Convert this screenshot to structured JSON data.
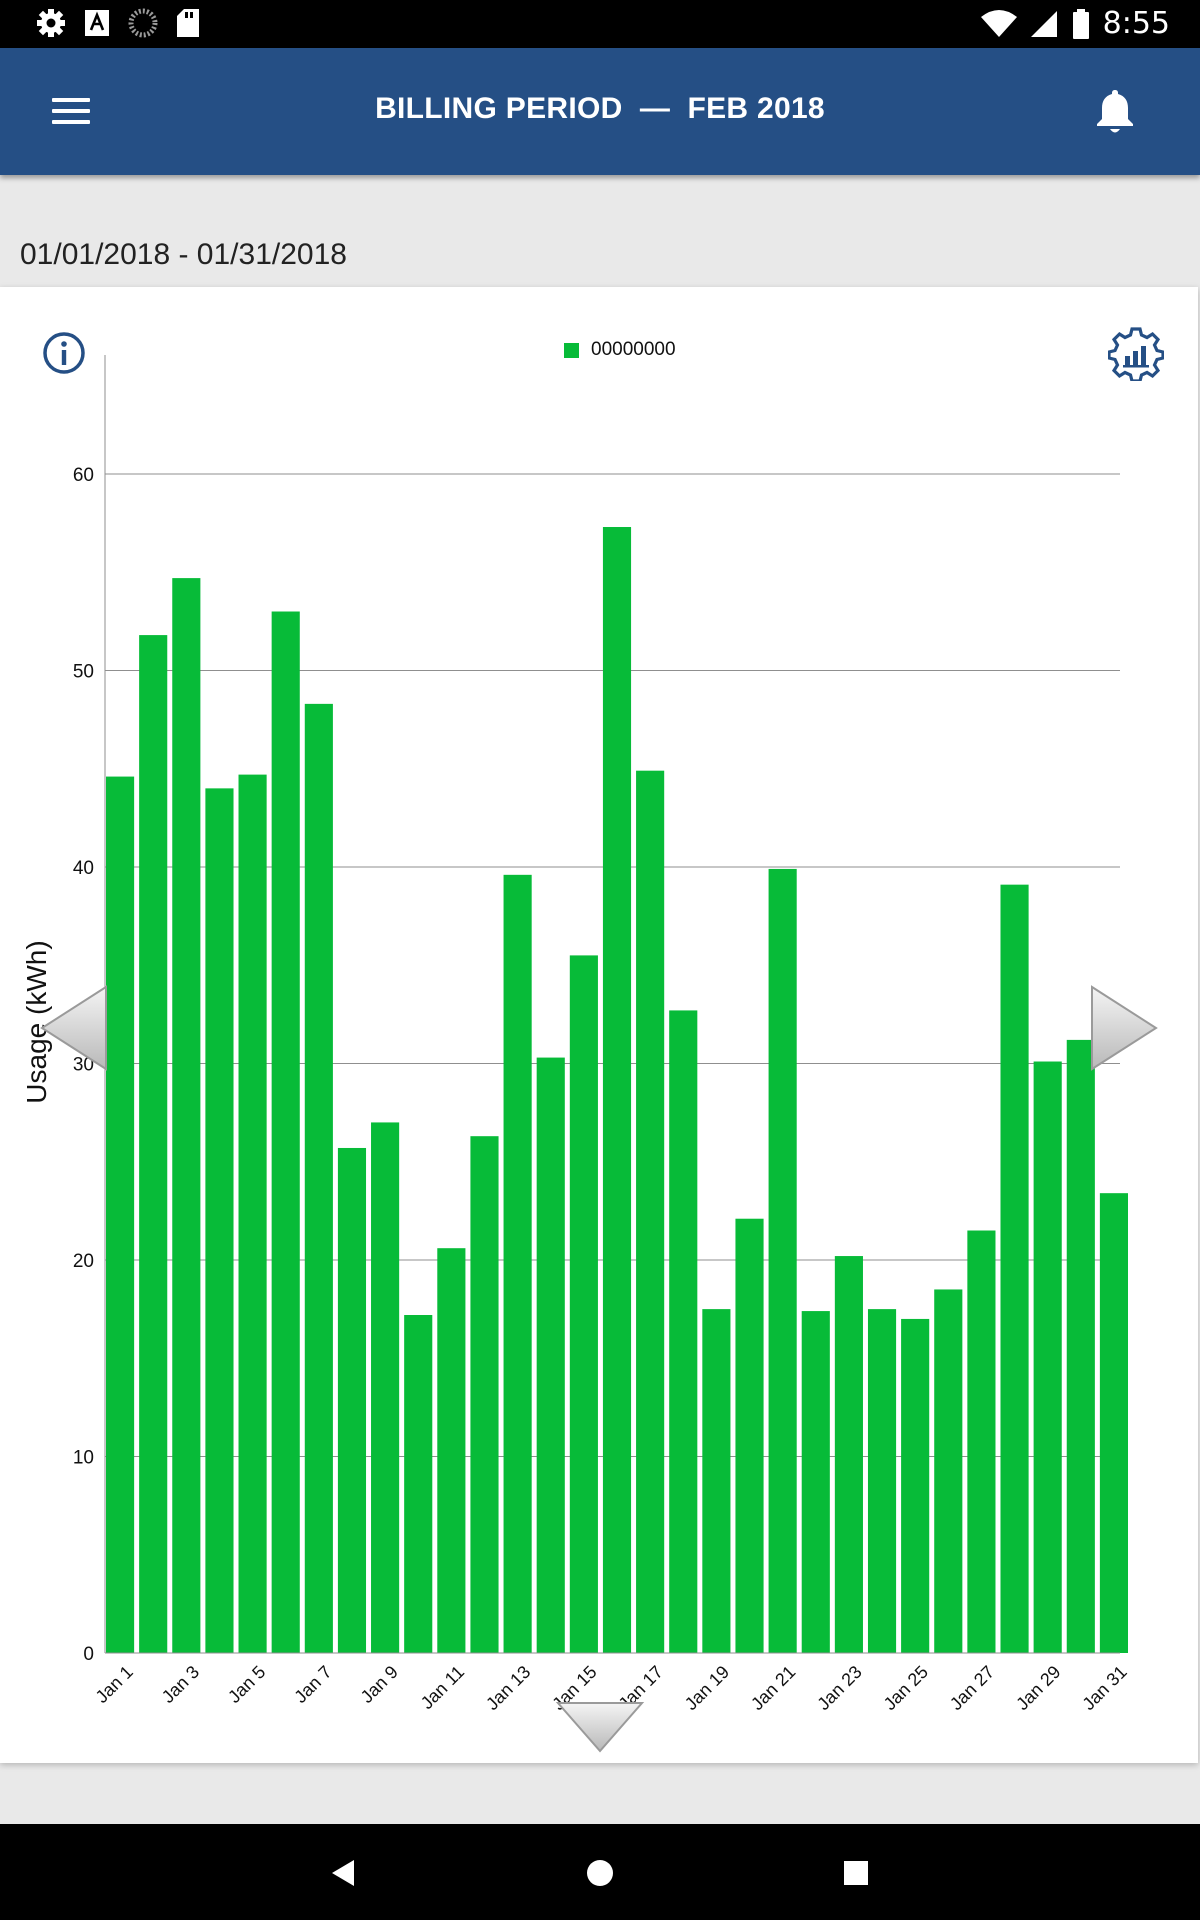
{
  "status_bar": {
    "time": "8:55",
    "left_icons": [
      "settings-icon",
      "font-download-icon",
      "sync-icon",
      "sd-card-icon"
    ],
    "right_icons": [
      "wifi-icon",
      "cell-signal-icon",
      "battery-icon"
    ]
  },
  "header": {
    "title": "BILLING PERIOD  —  FEB 2018",
    "menu_icon": "menu-icon",
    "notification_icon": "bell-icon"
  },
  "date_range": "01/01/2018 - 01/31/2018",
  "card": {
    "info_icon": "info-icon",
    "settings_icon": "chart-settings-icon",
    "nav_icons": [
      "previous-period-arrow",
      "next-period-arrow",
      "scroll-down-arrow"
    ]
  },
  "colors": {
    "header_bg": "#254f85",
    "bar_green": "#07bb38",
    "page_bg": "#e9e9e9"
  },
  "chart_data": {
    "type": "bar",
    "legend": "00000000",
    "legend_position": "top",
    "ylabel": "Usage (kWh)",
    "xlabel": "",
    "ylim": [
      0,
      63
    ],
    "yticks": [
      0,
      10,
      20,
      30,
      40,
      50,
      60
    ],
    "grid": true,
    "categories": [
      "Jan 1",
      "Jan 2",
      "Jan 3",
      "Jan 4",
      "Jan 5",
      "Jan 6",
      "Jan 7",
      "Jan 8",
      "Jan 9",
      "Jan 10",
      "Jan 11",
      "Jan 12",
      "Jan 13",
      "Jan 14",
      "Jan 15",
      "Jan 16",
      "Jan 17",
      "Jan 18",
      "Jan 19",
      "Jan 20",
      "Jan 21",
      "Jan 22",
      "Jan 23",
      "Jan 24",
      "Jan 25",
      "Jan 26",
      "Jan 27",
      "Jan 28",
      "Jan 29",
      "Jan 30",
      "Jan 31"
    ],
    "tick_labels": [
      "Jan 1",
      "Jan 3",
      "Jan 5",
      "Jan 7",
      "Jan 9",
      "Jan 11",
      "Jan 13",
      "Jan 15",
      "Jan 17",
      "Jan 19",
      "Jan 21",
      "Jan 23",
      "Jan 25",
      "Jan 27",
      "Jan 29",
      "Jan 31"
    ],
    "series": [
      {
        "name": "00000000",
        "values": [
          44.6,
          51.8,
          54.7,
          44.0,
          44.7,
          53.0,
          48.3,
          25.7,
          27.0,
          17.2,
          20.6,
          26.3,
          39.6,
          30.3,
          35.5,
          57.3,
          44.9,
          32.7,
          17.5,
          22.1,
          39.9,
          17.4,
          20.2,
          17.5,
          17.0,
          18.5,
          21.5,
          39.1,
          30.1,
          31.2,
          23.4
        ]
      }
    ]
  }
}
